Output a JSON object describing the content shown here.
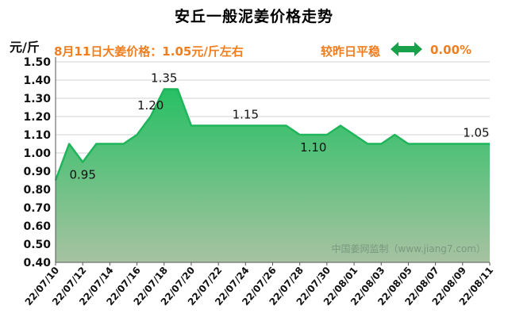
{
  "title": "安丘一般泥姜价格走势",
  "unit": "元/斤",
  "today_text": "8月11日大姜价格：1.05元/斤左右",
  "compare_label": "较昨日平稳",
  "compare_value": "0.00%",
  "watermark": "中国姜网监制（www.jiang7.com）",
  "colors": {
    "line": "#1fb55a",
    "accent": "#f07e1f",
    "arrow": "#19a04a"
  },
  "chart_data": {
    "type": "area",
    "title": "安丘一般泥姜价格走势",
    "ylabel": "元/斤",
    "ylim": [
      0.4,
      1.5
    ],
    "yticks": [
      "1.50",
      "1.40",
      "1.30",
      "1.20",
      "1.10",
      "1.00",
      "0.90",
      "0.80",
      "0.70",
      "0.60",
      "0.50",
      "0.40"
    ],
    "xtick_labels": [
      "22/07/10",
      "22/07/12",
      "22/07/14",
      "22/07/16",
      "22/07/18",
      "22/07/20",
      "22/07/22",
      "22/07/24",
      "22/07/26",
      "22/07/28",
      "22/07/30",
      "22/08/01",
      "22/08/03",
      "22/08/05",
      "22/08/07",
      "22/08/09",
      "22/08/11"
    ],
    "x": [
      "22/07/10",
      "22/07/11",
      "22/07/12",
      "22/07/13",
      "22/07/14",
      "22/07/15",
      "22/07/16",
      "22/07/17",
      "22/07/18",
      "22/07/19",
      "22/07/20",
      "22/07/21",
      "22/07/22",
      "22/07/23",
      "22/07/24",
      "22/07/25",
      "22/07/26",
      "22/07/27",
      "22/07/28",
      "22/07/29",
      "22/07/30",
      "22/07/31",
      "22/08/01",
      "22/08/02",
      "22/08/03",
      "22/08/04",
      "22/08/05",
      "22/08/06",
      "22/08/07",
      "22/08/08",
      "22/08/09",
      "22/08/10",
      "22/08/11"
    ],
    "values": [
      0.85,
      1.05,
      0.95,
      1.05,
      1.05,
      1.05,
      1.1,
      1.2,
      1.35,
      1.35,
      1.15,
      1.15,
      1.15,
      1.15,
      1.15,
      1.15,
      1.15,
      1.15,
      1.1,
      1.1,
      1.1,
      1.15,
      1.1,
      1.05,
      1.05,
      1.1,
      1.05,
      1.05,
      1.05,
      1.05,
      1.05,
      1.05,
      1.05
    ],
    "annotations": [
      {
        "index": 2,
        "label": "0.95",
        "pos": "below"
      },
      {
        "index": 7,
        "label": "1.20",
        "pos": "above"
      },
      {
        "index": 8,
        "label": "1.35",
        "pos": "above"
      },
      {
        "index": 14,
        "label": "1.15",
        "pos": "above"
      },
      {
        "index": 19,
        "label": "1.10",
        "pos": "below"
      },
      {
        "index": 31,
        "label": "1.05",
        "pos": "above"
      }
    ],
    "grid": true
  }
}
